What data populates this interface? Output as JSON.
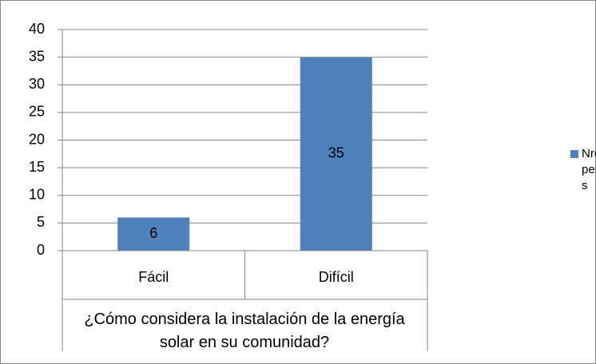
{
  "chart_data": {
    "type": "bar",
    "categories": [
      "Fácil",
      "Difícil"
    ],
    "series": [
      {
        "name": "Nro de personas",
        "color": "#4f81bd",
        "values": [
          6,
          35
        ]
      }
    ],
    "x_label": "¿Cómo considera la instalación de la energía solar en su comunidad?",
    "ylim": [
      0,
      40
    ],
    "yticks": [
      0,
      5,
      10,
      15,
      20,
      25,
      30,
      35,
      40
    ],
    "grid": true,
    "legend": "right"
  }
}
